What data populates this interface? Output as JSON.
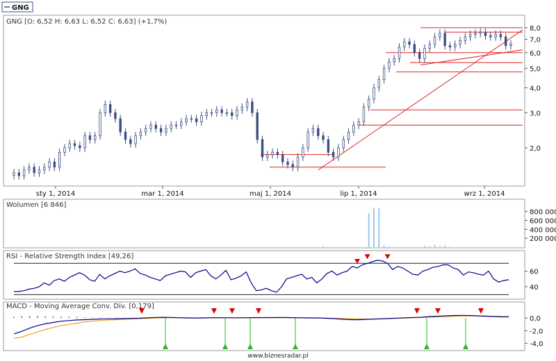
{
  "ticker": "GNG",
  "footer": "www.biznesradar.pl",
  "price_panel": {
    "title": "GNG [O: 6,52  H: 6,63  L: 6,52  C: 6,63] (+1,7%)"
  },
  "volume_panel": {
    "title": "Wolumen [6 846]"
  },
  "rsi_panel": {
    "title": "RSI - Relative Strength Index [49,26]"
  },
  "macd_panel": {
    "title": "MACD - Moving Average Conv. Div. [0,179]"
  },
  "colors": {
    "candle": "#3b4f82",
    "trendline": "#dd2222",
    "volume": "#9cc9f0",
    "rsi": "#00008b",
    "macd": "#00008b",
    "signal": "#f0a020",
    "hist": "#22bb22",
    "marker_down": "#dd0000",
    "marker_up": "#22bb22"
  },
  "chart_data": [
    {
      "type": "candlestick",
      "title": "GNG",
      "x_ticks": [
        "sty 1, 2014",
        "mar 1, 2014",
        "maj 1, 2014",
        "lip 1, 2014",
        "wrz 1, 2014"
      ],
      "y_ticks": [
        "2,0",
        "3,0",
        "4,0",
        "5,0",
        "6,0",
        "7,0",
        "8,0"
      ],
      "y_scale": "log",
      "ohlc_approx": {
        "open": 6.52,
        "high": 6.63,
        "low": 6.52,
        "close": 6.63,
        "change_pct": 1.7
      },
      "close_series": [
        1.5,
        1.45,
        1.55,
        1.6,
        1.5,
        1.55,
        1.6,
        1.7,
        1.6,
        1.9,
        2.0,
        2.1,
        2.05,
        2.0,
        2.3,
        2.2,
        2.3,
        3.0,
        3.3,
        3.0,
        2.8,
        2.4,
        2.2,
        2.1,
        2.3,
        2.4,
        2.5,
        2.6,
        2.5,
        2.4,
        2.5,
        2.6,
        2.6,
        2.7,
        2.8,
        2.8,
        2.7,
        2.9,
        3.0,
        3.0,
        3.1,
        3.0,
        3.0,
        2.9,
        3.1,
        3.2,
        3.4,
        3.0,
        2.2,
        1.8,
        1.85,
        1.9,
        1.85,
        1.7,
        1.65,
        1.6,
        1.8,
        2.0,
        2.4,
        2.5,
        2.3,
        2.2,
        1.9,
        1.8,
        2.0,
        2.2,
        2.4,
        2.6,
        2.7,
        3.2,
        3.5,
        4.0,
        4.4,
        5.0,
        5.4,
        5.6,
        6.4,
        6.8,
        6.6,
        6.0,
        5.6,
        6.3,
        6.6,
        7.2,
        7.5,
        6.5,
        6.4,
        6.6,
        6.9,
        7.2,
        7.4,
        7.5,
        7.6,
        7.3,
        7.2,
        7.4,
        7.2,
        6.5,
        6.63
      ],
      "trendlines": [
        {
          "from": [
            "~lip",
            1.55
          ],
          "to": [
            "~wrz",
            7.8
          ]
        },
        {
          "from": [
            "~sie",
            5.2
          ],
          "to": [
            "~wrz",
            6.2
          ]
        }
      ],
      "horizontal_levels": [
        8.0,
        7.6,
        6.0,
        5.35,
        4.8,
        3.1,
        2.6,
        1.85,
        1.6
      ]
    },
    {
      "type": "bar",
      "title": "Wolumen [6 846]",
      "y_ticks": [
        "200 000",
        "400 000",
        "600 000",
        "800 000"
      ],
      "values_approx": [
        0,
        0,
        0,
        0,
        0,
        0,
        0,
        0,
        0,
        0,
        0,
        0,
        0,
        0,
        0,
        0,
        0,
        0,
        0,
        0,
        0,
        0,
        0,
        0,
        0,
        0,
        0,
        0,
        0,
        0,
        0,
        0,
        0,
        0,
        0,
        0,
        0,
        0,
        0,
        0,
        0,
        0,
        0,
        0,
        0,
        0,
        0,
        0,
        0,
        0,
        0,
        0,
        0,
        0,
        0,
        0,
        0,
        0,
        0,
        0,
        0,
        20000,
        0,
        0,
        0,
        0,
        0,
        0,
        0,
        0,
        760000,
        880000,
        870000,
        40000,
        20000,
        10000,
        0,
        0,
        0,
        0,
        0,
        30000,
        20000,
        50000,
        20000,
        40000,
        10000,
        0,
        0,
        0,
        0,
        0,
        0,
        0,
        0,
        0,
        0,
        0,
        0
      ]
    },
    {
      "type": "line",
      "title": "RSI - Relative Strength Index [49,26]",
      "y_ticks": [
        "40",
        "60"
      ],
      "overbought": 70,
      "oversold": 30,
      "last": 49.26,
      "values_approx": [
        34,
        34,
        35,
        37,
        38,
        40,
        45,
        42,
        48,
        50,
        47,
        52,
        55,
        58,
        55,
        49,
        47,
        56,
        50,
        54,
        57,
        60,
        58,
        60,
        63,
        57,
        55,
        52,
        50,
        48,
        54,
        56,
        58,
        60,
        59,
        52,
        58,
        60,
        62,
        54,
        50,
        55,
        61,
        49,
        51,
        54,
        59,
        45,
        35,
        36,
        38,
        35,
        33,
        40,
        50,
        52,
        54,
        56,
        50,
        52,
        45,
        50,
        57,
        60,
        55,
        58,
        60,
        66,
        64,
        68,
        70,
        72,
        74,
        73,
        70,
        62,
        66,
        64,
        60,
        56,
        55,
        60,
        62,
        65,
        66,
        68,
        68,
        64,
        62,
        55,
        59,
        58,
        56,
        55,
        60,
        50,
        46,
        48,
        49
      ]
    },
    {
      "type": "line",
      "title": "MACD - Moving Average Conv. Div. [0,179]",
      "y_ticks": [
        "-4,0",
        "-2,0",
        "0,0"
      ],
      "series": [
        {
          "name": "MACD",
          "values_approx": [
            -2.5,
            -2.1,
            -1.6,
            -1.2,
            -0.9,
            -0.7,
            -0.5,
            -0.4,
            -0.3,
            -0.25,
            -0.2,
            -0.15,
            -0.12,
            -0.1,
            -0.08,
            -0.05,
            -0.02,
            0.05,
            0.1,
            0.12,
            0.1,
            0.05,
            0.02,
            0.0,
            0.02,
            0.05,
            0.06,
            0.05,
            0.04,
            0.05,
            0.06,
            0.07,
            0.08,
            0.08,
            0.09,
            0.07,
            0.05,
            0.03,
            0.02,
            0.0,
            -0.05,
            -0.1,
            -0.2,
            -0.25,
            -0.25,
            -0.2,
            -0.15,
            -0.1,
            -0.05,
            0.0,
            0.05,
            0.1,
            0.15,
            0.25,
            0.3,
            0.35,
            0.4,
            0.42,
            0.4,
            0.35,
            0.3,
            0.25,
            0.2,
            0.18
          ]
        },
        {
          "name": "Signal",
          "values_approx": [
            -3.2,
            -3.0,
            -2.6,
            -2.2,
            -1.8,
            -1.5,
            -1.2,
            -1.0,
            -0.8,
            -0.6,
            -0.5,
            -0.4,
            -0.3,
            -0.25,
            -0.2,
            -0.15,
            -0.1,
            -0.05,
            0.0,
            0.05,
            0.06,
            0.06,
            0.05,
            0.04,
            0.04,
            0.04,
            0.05,
            0.05,
            0.05,
            0.05,
            0.05,
            0.06,
            0.06,
            0.07,
            0.07,
            0.07,
            0.06,
            0.05,
            0.04,
            0.03,
            0.0,
            -0.03,
            -0.08,
            -0.12,
            -0.15,
            -0.16,
            -0.15,
            -0.12,
            -0.08,
            -0.04,
            0.0,
            0.05,
            0.1,
            0.15,
            0.2,
            0.25,
            0.3,
            0.33,
            0.35,
            0.35,
            0.33,
            0.3,
            0.27,
            0.24
          ]
        }
      ]
    }
  ]
}
